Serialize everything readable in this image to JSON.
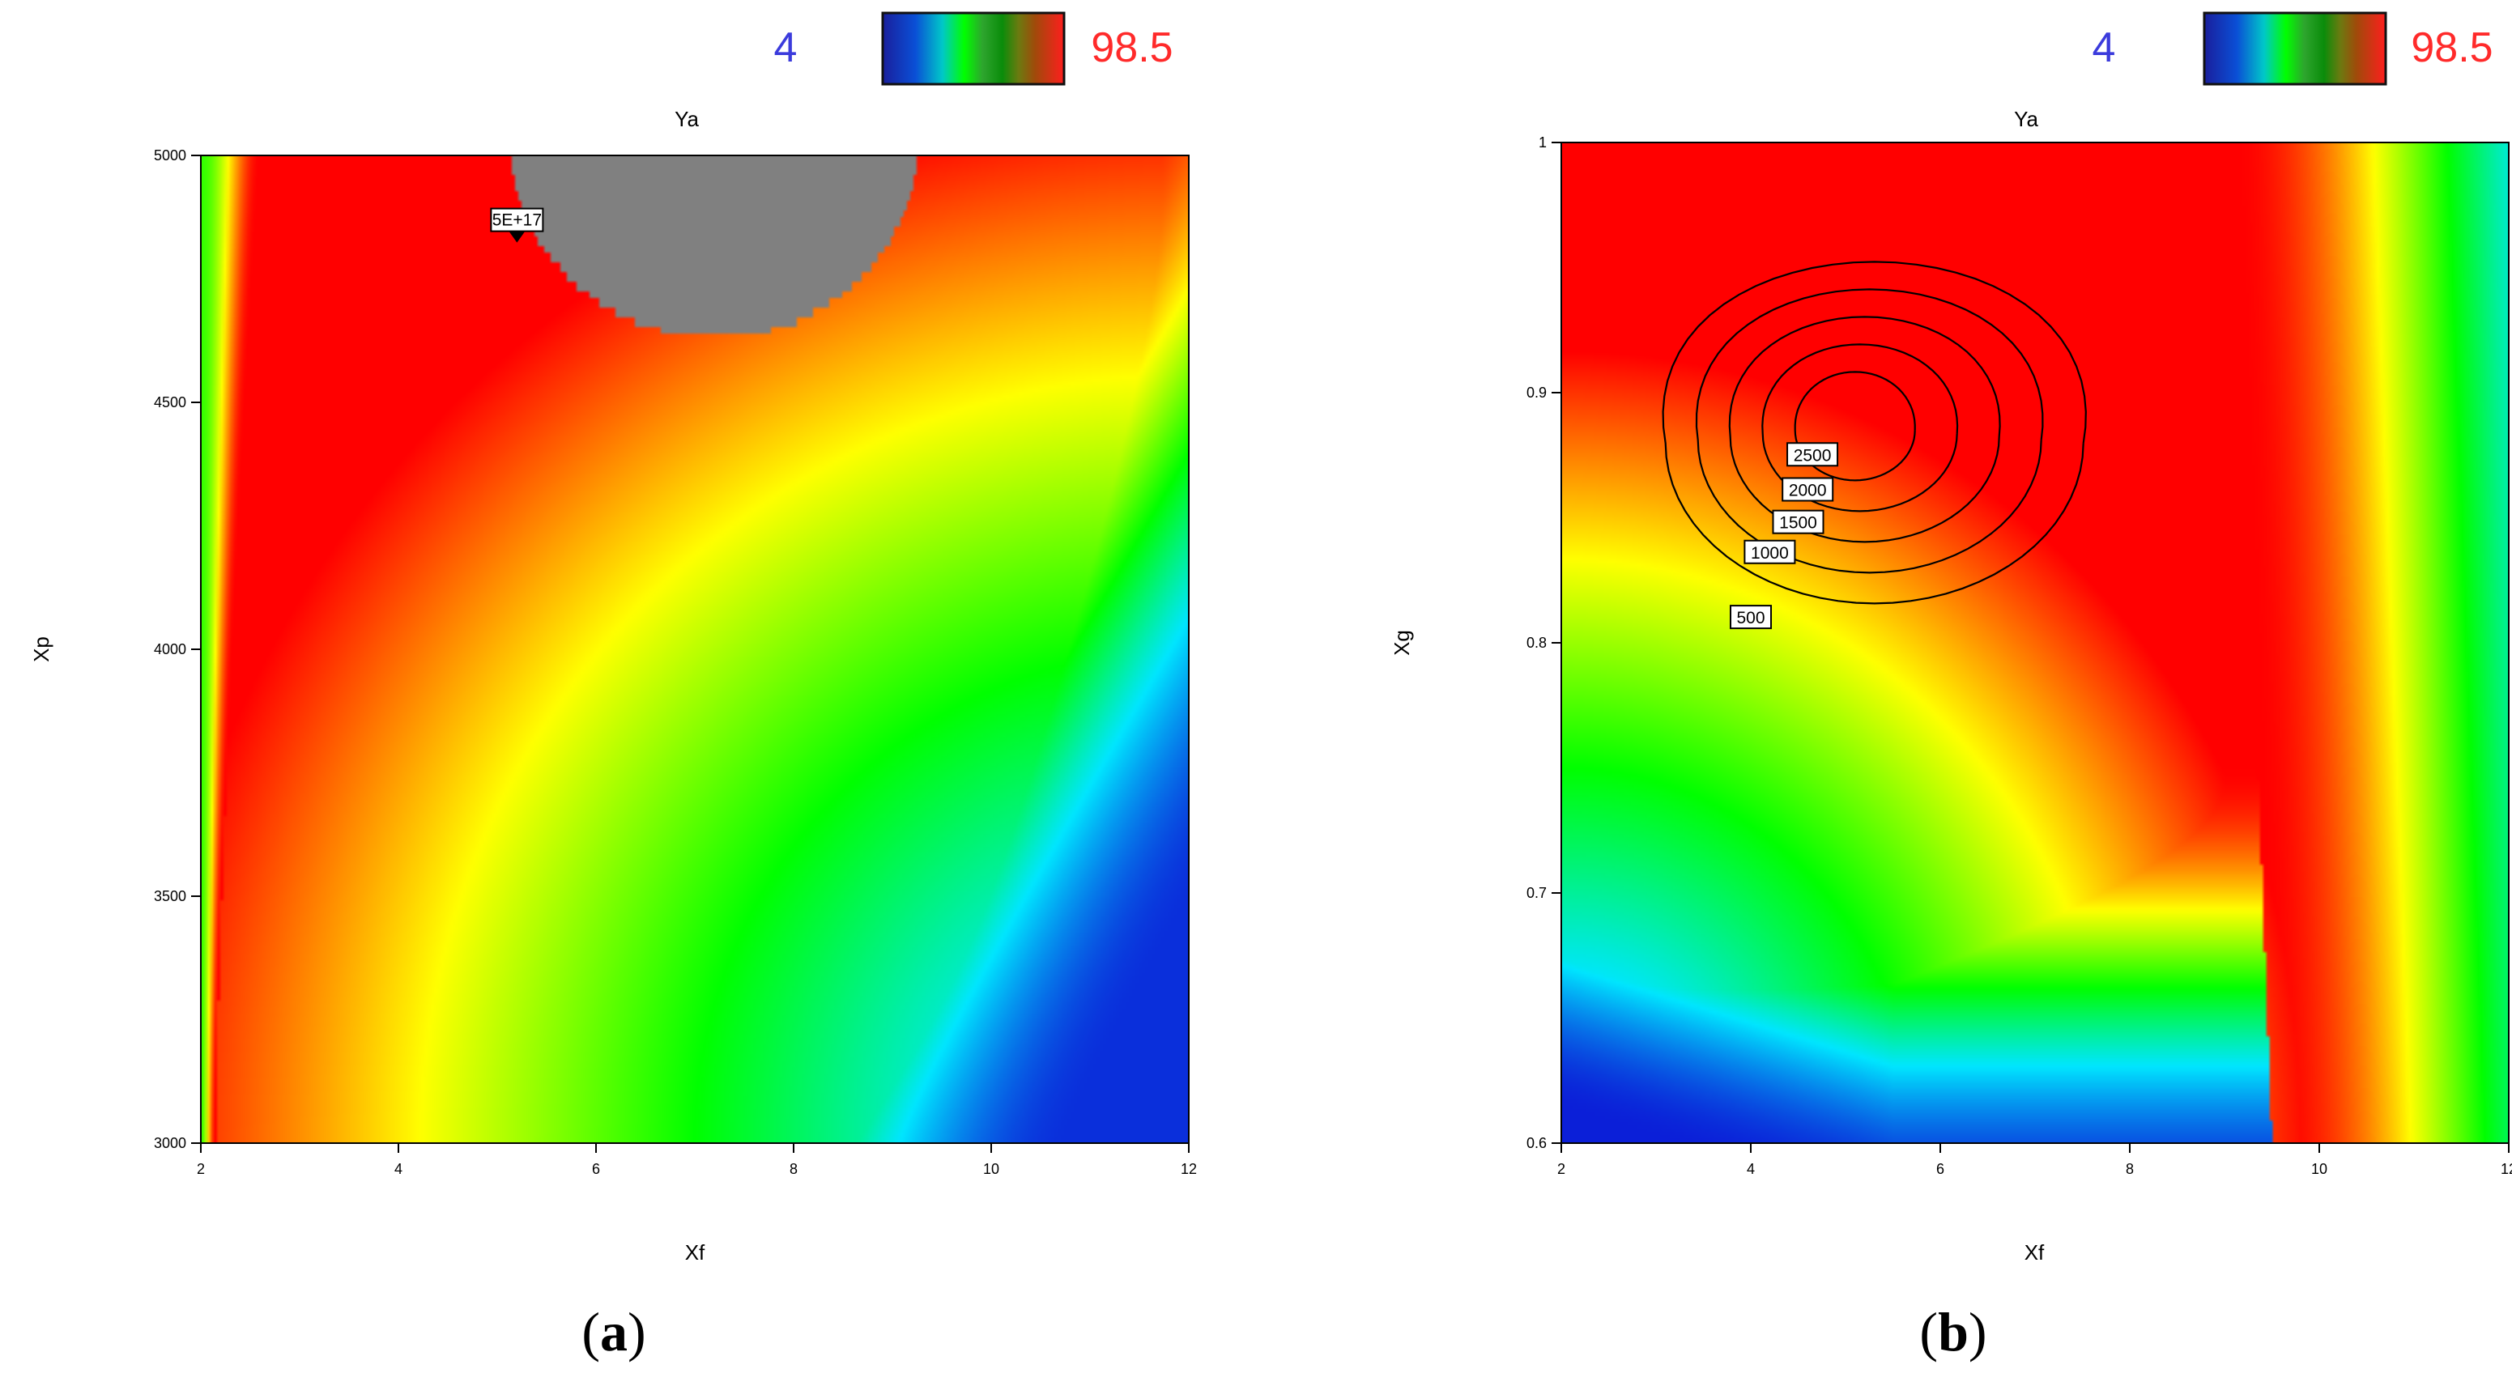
{
  "chart_data": [
    {
      "type": "heatmap",
      "panel": "a",
      "title": "Ya",
      "xlabel": "Xf",
      "ylabel": "Xp",
      "xlim": [
        2,
        12
      ],
      "ylim": [
        3000,
        5000
      ],
      "xticks": [
        2,
        4,
        6,
        8,
        10,
        12
      ],
      "yticks": [
        3000,
        3500,
        4000,
        4500,
        5000
      ],
      "color_scale": {
        "min": 4,
        "max": 98.5,
        "colors": [
          "#0b1fd8",
          "#00e6ff",
          "#00ff00",
          "#ffff00",
          "#ff0000"
        ]
      },
      "infeasible_region": {
        "color": "#808080"
      },
      "flag": {
        "text": "5E+17",
        "x": 5.2,
        "y": 4840
      },
      "panel_label": {
        "open": "(",
        "letter": "a",
        "close": ")"
      }
    },
    {
      "type": "heatmap",
      "panel": "b",
      "title": "Ya",
      "xlabel": "Xf",
      "ylabel": "Xg",
      "xlim": [
        2,
        12
      ],
      "ylim": [
        0.6,
        1.0
      ],
      "xticks": [
        2,
        4,
        6,
        8,
        10,
        12
      ],
      "yticks": [
        0.6,
        0.7,
        0.8,
        0.9,
        1
      ],
      "color_scale": {
        "min": 4,
        "max": 98.5,
        "colors": [
          "#0b1fd8",
          "#00e6ff",
          "#00ff00",
          "#ffff00",
          "#ff0000"
        ]
      },
      "contours": {
        "center": {
          "x": 5.1,
          "y": 0.885
        },
        "levels": [
          500,
          1000,
          1500,
          2000,
          2500
        ],
        "labels": [
          {
            "text": "500",
            "x": 4.0,
            "y": 0.81
          },
          {
            "text": "1000",
            "x": 4.2,
            "y": 0.836
          },
          {
            "text": "1500",
            "x": 4.5,
            "y": 0.848
          },
          {
            "text": "2000",
            "x": 4.6,
            "y": 0.861
          },
          {
            "text": "2500",
            "x": 4.65,
            "y": 0.875
          }
        ]
      },
      "panel_label": {
        "open": "(",
        "letter": "b",
        "close": ")"
      }
    }
  ]
}
